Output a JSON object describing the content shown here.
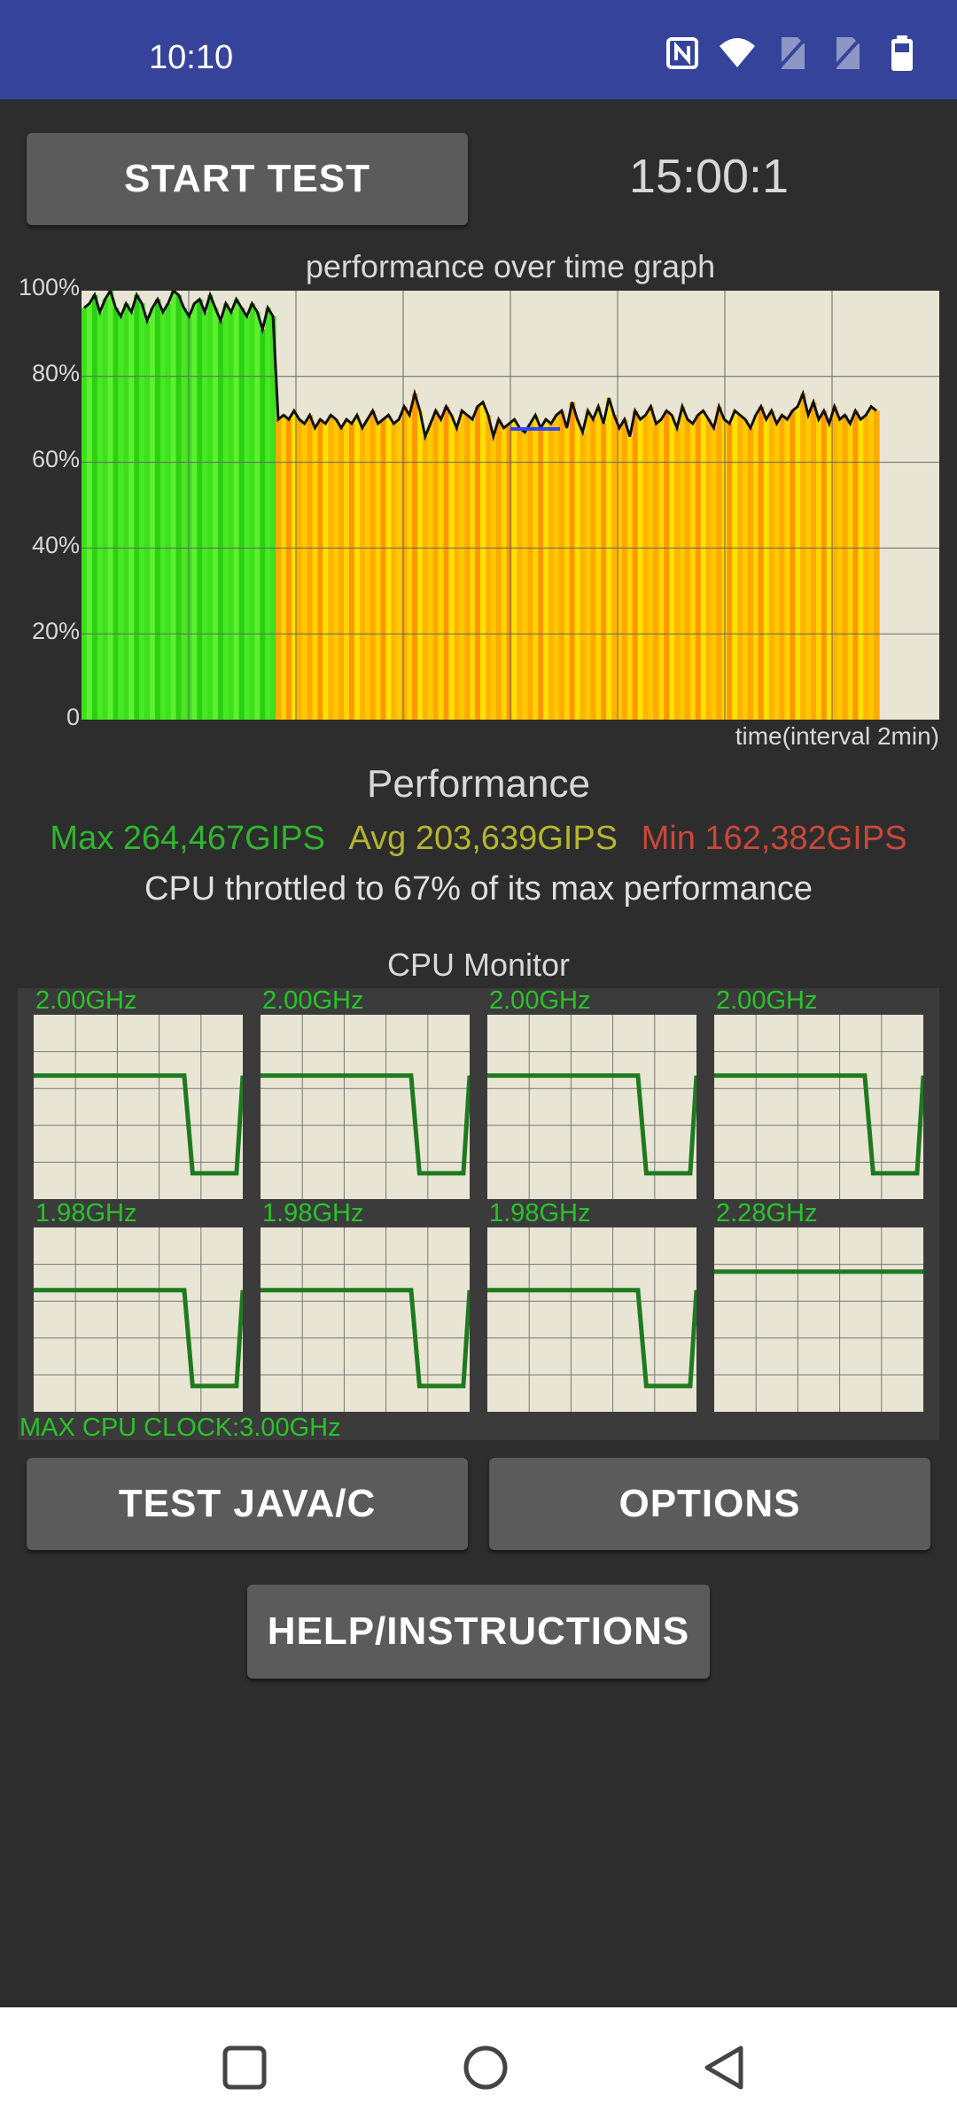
{
  "status_bar": {
    "time": "10:10",
    "icons": [
      "nfc-icon",
      "wifi-icon",
      "no-sim-icon",
      "no-sim-icon",
      "battery-icon"
    ]
  },
  "buttons": {
    "start_test": "START TEST",
    "test_java_c": "TEST JAVA/C",
    "options": "OPTIONS",
    "help": "HELP/INSTRUCTIONS"
  },
  "timer": "15:00:1",
  "graph": {
    "title": "performance over time graph",
    "y_ticks": [
      "100%",
      "80%",
      "60%",
      "40%",
      "20%",
      "0"
    ],
    "x_label": "time(interval 2min)"
  },
  "chart_data": {
    "type": "area",
    "title": "performance over time graph",
    "xlabel": "time(interval 2min)",
    "ylabel": "",
    "ylim": [
      0,
      100
    ],
    "grid": true,
    "series": [
      {
        "values": [
          96,
          97,
          99,
          95,
          98,
          100,
          96,
          94,
          97,
          95,
          99,
          97,
          93,
          96,
          98,
          95,
          97,
          100,
          99,
          96,
          94,
          97,
          98,
          95,
          99,
          96,
          93,
          97,
          95,
          98,
          96,
          94,
          97,
          95,
          91,
          96,
          94,
          70,
          71,
          70,
          72,
          70,
          69,
          71,
          68,
          70,
          69,
          71,
          70,
          68,
          70,
          69,
          71,
          68,
          70,
          72,
          69,
          70,
          71,
          69,
          70,
          73,
          71,
          76,
          72,
          66,
          69,
          72,
          70,
          73,
          71,
          68,
          72,
          71,
          70,
          73,
          74,
          71,
          66,
          70,
          68,
          69,
          70,
          68,
          67,
          69,
          71,
          68,
          70,
          69,
          71,
          72,
          68,
          74,
          70,
          67,
          72,
          70,
          73,
          69,
          75,
          71,
          68,
          70,
          66,
          72,
          70,
          71,
          73,
          69,
          70,
          72,
          71,
          68,
          73,
          70,
          69,
          71,
          72,
          70,
          68,
          73,
          70,
          69,
          72,
          71,
          70,
          68,
          71,
          73,
          70,
          72,
          69,
          71,
          70,
          72,
          73,
          76,
          71,
          74,
          70,
          72,
          69,
          73,
          70,
          71,
          69,
          72,
          70,
          71,
          73,
          72
        ]
      }
    ]
  },
  "performance": {
    "title": "Performance",
    "max": "Max 264,467GIPS",
    "avg": "Avg 203,639GIPS",
    "min": "Min 162,382GIPS",
    "max_color": "#2fb52f",
    "avg_color": "#b5b530",
    "min_color": "#c9473a",
    "throttle_text": "CPU throttled to 67% of its max performance"
  },
  "cpu_monitor": {
    "title": "CPU Monitor",
    "cores": [
      {
        "freq": "2.00GHz",
        "level": 0.67,
        "drop": true
      },
      {
        "freq": "2.00GHz",
        "level": 0.67,
        "drop": true
      },
      {
        "freq": "2.00GHz",
        "level": 0.67,
        "drop": true
      },
      {
        "freq": "2.00GHz",
        "level": 0.67,
        "drop": true
      },
      {
        "freq": "1.98GHz",
        "level": 0.66,
        "drop": true
      },
      {
        "freq": "1.98GHz",
        "level": 0.66,
        "drop": true
      },
      {
        "freq": "1.98GHz",
        "level": 0.66,
        "drop": true
      },
      {
        "freq": "2.28GHz",
        "level": 0.76,
        "drop": false
      }
    ],
    "max_clock": "MAX CPU CLOCK:3.00GHz"
  },
  "nav": {
    "icons": [
      "recents-icon",
      "home-icon",
      "back-icon"
    ]
  }
}
